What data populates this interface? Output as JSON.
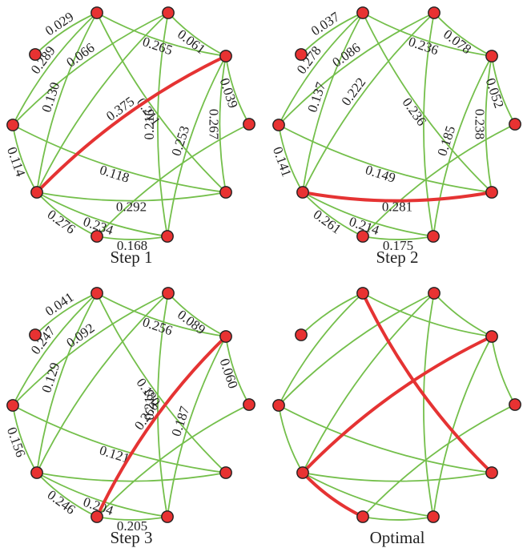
{
  "colors": {
    "edge": "#74bf4b",
    "highlight": "#e53333",
    "node_fill": "#e83232",
    "node_stroke": "#202020"
  },
  "panels": [
    {
      "caption": "Step 1",
      "edges": [
        {
          "a": 1,
          "b": 0,
          "w": "0.029"
        },
        {
          "a": 1,
          "b": 3,
          "w": "0.289"
        },
        {
          "a": 2,
          "b": 3,
          "w": "0.066"
        },
        {
          "a": 1,
          "b": 4,
          "w": "0.130"
        },
        {
          "a": 1,
          "b": 5,
          "w": "0.211"
        },
        {
          "a": 1,
          "b": 6,
          "w": "0.265"
        },
        {
          "a": 2,
          "b": 6,
          "w": "0.061"
        },
        {
          "a": 6,
          "b": 7,
          "w": "0.039"
        },
        {
          "a": 6,
          "b": 4,
          "w": "0.375",
          "h": true
        },
        {
          "a": 6,
          "b": 9,
          "w": "0.253"
        },
        {
          "a": 6,
          "b": 5,
          "w": "0.267"
        },
        {
          "a": 3,
          "b": 4,
          "w": "0.114"
        },
        {
          "a": 3,
          "b": 5,
          "w": "0.118"
        },
        {
          "a": 4,
          "b": 5,
          "w": "0.292"
        },
        {
          "a": 4,
          "b": 8,
          "w": "0.276"
        },
        {
          "a": 4,
          "b": 9,
          "w": "0.234"
        },
        {
          "a": 8,
          "b": 9,
          "w": "0.168"
        },
        {
          "a": 2,
          "b": 9,
          "w": "0.216"
        },
        {
          "a": 2,
          "b": 4,
          "w": ""
        },
        {
          "a": 7,
          "b": 8,
          "w": ""
        }
      ]
    },
    {
      "caption": "Step 2",
      "edges": [
        {
          "a": 1,
          "b": 0,
          "w": "0.037"
        },
        {
          "a": 1,
          "b": 3,
          "w": "0.278"
        },
        {
          "a": 2,
          "b": 3,
          "w": "0.086"
        },
        {
          "a": 1,
          "b": 4,
          "w": "0.137"
        },
        {
          "a": 1,
          "b": 5,
          "w": "0.236"
        },
        {
          "a": 1,
          "b": 6,
          "w": "0.236"
        },
        {
          "a": 2,
          "b": 6,
          "w": "0.078"
        },
        {
          "a": 6,
          "b": 7,
          "w": "0.052"
        },
        {
          "a": 2,
          "b": 4,
          "w": "0.222"
        },
        {
          "a": 6,
          "b": 5,
          "w": "0.238"
        },
        {
          "a": 3,
          "b": 4,
          "w": "0.141"
        },
        {
          "a": 3,
          "b": 5,
          "w": "0.149"
        },
        {
          "a": 4,
          "b": 5,
          "w": "0.281",
          "h": true
        },
        {
          "a": 4,
          "b": 8,
          "w": "0.261"
        },
        {
          "a": 4,
          "b": 9,
          "w": "0.214"
        },
        {
          "a": 8,
          "b": 9,
          "w": "0.175"
        },
        {
          "a": 6,
          "b": 9,
          "w": "0.185"
        },
        {
          "a": 7,
          "b": 8,
          "w": ""
        },
        {
          "a": 2,
          "b": 9,
          "w": ""
        }
      ]
    },
    {
      "caption": "Step 3",
      "edges": [
        {
          "a": 1,
          "b": 0,
          "w": "0.041"
        },
        {
          "a": 1,
          "b": 3,
          "w": "0.247"
        },
        {
          "a": 2,
          "b": 3,
          "w": "0.092"
        },
        {
          "a": 1,
          "b": 4,
          "w": "0.129"
        },
        {
          "a": 1,
          "b": 5,
          "w": "0.180"
        },
        {
          "a": 1,
          "b": 6,
          "w": "0.256"
        },
        {
          "a": 2,
          "b": 6,
          "w": "0.089"
        },
        {
          "a": 6,
          "b": 7,
          "w": "0.060"
        },
        {
          "a": 6,
          "b": 8,
          "w": "0.260",
          "h": true
        },
        {
          "a": 6,
          "b": 9,
          "w": "0.187"
        },
        {
          "a": 3,
          "b": 4,
          "w": "0.156"
        },
        {
          "a": 3,
          "b": 5,
          "w": "0.121"
        },
        {
          "a": 4,
          "b": 8,
          "w": "0.246"
        },
        {
          "a": 4,
          "b": 9,
          "w": "0.204"
        },
        {
          "a": 8,
          "b": 9,
          "w": "0.205"
        },
        {
          "a": 2,
          "b": 9,
          "w": "0.215"
        },
        {
          "a": 4,
          "b": 5,
          "w": ""
        },
        {
          "a": 2,
          "b": 4,
          "w": ""
        },
        {
          "a": 7,
          "b": 8,
          "w": ""
        }
      ]
    },
    {
      "caption": "Optimal",
      "edges": [
        {
          "a": 1,
          "b": 0,
          "w": ""
        },
        {
          "a": 1,
          "b": 3,
          "w": ""
        },
        {
          "a": 1,
          "b": 5,
          "w": "",
          "h": true
        },
        {
          "a": 1,
          "b": 6,
          "w": ""
        },
        {
          "a": 2,
          "b": 3,
          "w": ""
        },
        {
          "a": 2,
          "b": 6,
          "w": ""
        },
        {
          "a": 2,
          "b": 4,
          "w": ""
        },
        {
          "a": 2,
          "b": 9,
          "w": ""
        },
        {
          "a": 6,
          "b": 4,
          "w": "",
          "h": true
        },
        {
          "a": 6,
          "b": 7,
          "w": ""
        },
        {
          "a": 6,
          "b": 9,
          "w": ""
        },
        {
          "a": 3,
          "b": 5,
          "w": ""
        },
        {
          "a": 3,
          "b": 4,
          "w": ""
        },
        {
          "a": 4,
          "b": 5,
          "w": ""
        },
        {
          "a": 4,
          "b": 8,
          "w": "",
          "h": true
        },
        {
          "a": 4,
          "b": 9,
          "w": ""
        },
        {
          "a": 8,
          "b": 9,
          "w": ""
        },
        {
          "a": 7,
          "b": 8,
          "w": ""
        }
      ]
    }
  ]
}
